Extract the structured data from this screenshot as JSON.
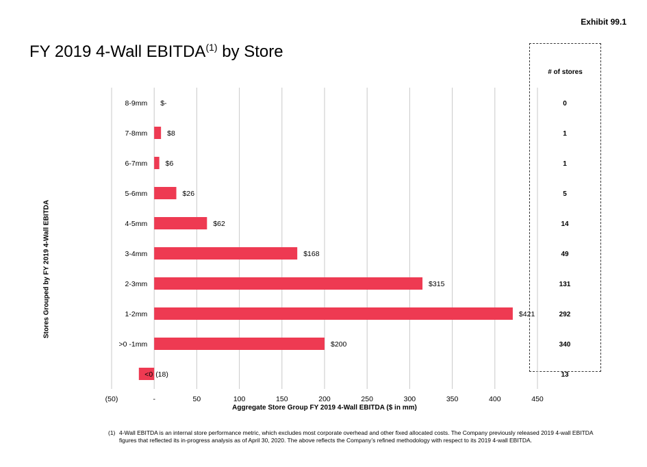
{
  "exhibit": "Exhibit 99.1",
  "title": {
    "main": "FY 2019 4-Wall EBITDA",
    "superscript": "(1)",
    "suffix": " by Store"
  },
  "stores_header": "# of stores",
  "footnote": {
    "number": "(1)",
    "text": "4-Wall EBITDA is an internal store performance metric, which excludes most corporate overhead and other fixed allocated costs. The Company previously released 2019 4-wall EBITDA figures that reflected its in-progress analysis as of April 30, 2020. The above reflects the Company’s refined methodology with respect to its 2019 4-wall EBITDA."
  },
  "colors": {
    "bar": "#ee3a52",
    "grid": "#c8c8c8"
  },
  "chart_data": {
    "type": "bar",
    "orientation": "horizontal",
    "categories": [
      "8-9mm",
      "7-8mm",
      "6-7mm",
      "5-6mm",
      "4-5mm",
      "3-4mm",
      "2-3mm",
      "1-2mm",
      ">0 -1mm",
      "<0"
    ],
    "values": [
      0,
      8,
      6,
      26,
      62,
      168,
      315,
      421,
      200,
      -18
    ],
    "value_labels": [
      "$-",
      "$8",
      "$6",
      "$26",
      "$62",
      "$168",
      "$315",
      "$421",
      "$200",
      "(18)"
    ],
    "store_counts": [
      "0",
      "1",
      "1",
      "5",
      "14",
      "49",
      "131",
      "292",
      "340",
      "13"
    ],
    "xlabel": "Aggregate Store Group FY 2019 4-Wall EBITDA ($ in mm)",
    "ylabel": "Stores Grouped by FY 2019 4-Wall EBITDA",
    "xlim": [
      -50,
      450
    ],
    "xticks": [
      -50,
      0,
      50,
      100,
      150,
      200,
      250,
      300,
      350,
      400,
      450
    ],
    "xtick_labels": [
      "(50)",
      "-",
      "50",
      "100",
      "150",
      "200",
      "250",
      "300",
      "350",
      "400",
      "450"
    ],
    "grid": true
  }
}
